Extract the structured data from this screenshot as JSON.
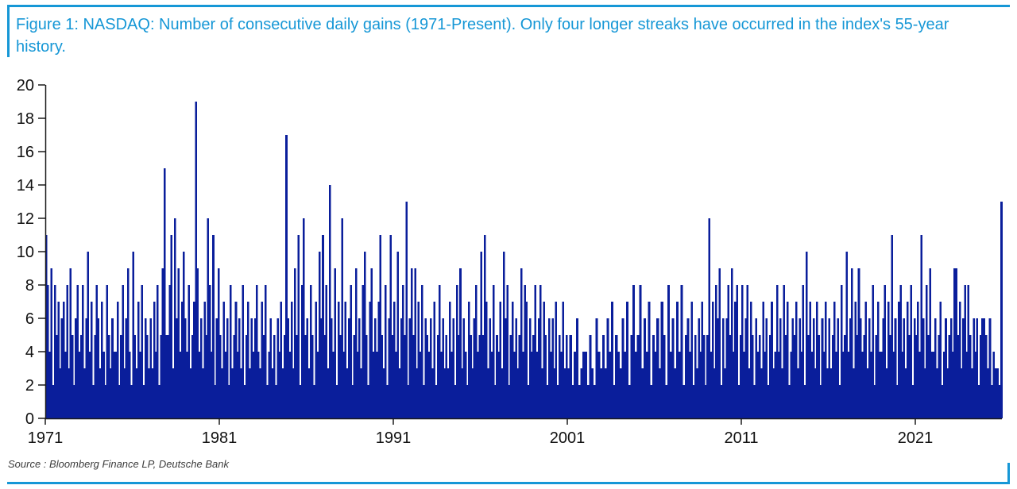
{
  "figure": {
    "title": "Figure 1: NASDAQ: Number of consecutive daily gains (1971-Present). Only four longer streaks have occurred in the index's 55-year history.",
    "source": "Source : Bloomberg Finance LP, Deutsche Bank",
    "accent_color": "#1697d6",
    "bar_color": "#0a1e9b",
    "axis_color": "#1a1a1a"
  },
  "chart_data": {
    "type": "bar",
    "title": "NASDAQ: Number of consecutive daily gains (1971-Present)",
    "xlabel": "",
    "ylabel": "",
    "ylim": [
      0,
      20
    ],
    "ytick_step": 2,
    "xticks": [
      1971,
      1981,
      1991,
      2001,
      2011,
      2021
    ],
    "x_start": 1971,
    "x_end": 2026,
    "grid": false,
    "legend": "none",
    "notable_peaks": [
      {
        "year": 1971.2,
        "value": 11
      },
      {
        "year": 1977.8,
        "value": 15
      },
      {
        "year": 1979.6,
        "value": 19
      },
      {
        "year": 1984.8,
        "value": 17
      },
      {
        "year": 1987.3,
        "value": 14
      },
      {
        "year": 1991.7,
        "value": 13
      },
      {
        "year": 2009.1,
        "value": 12
      },
      {
        "year": 2019.6,
        "value": 11
      },
      {
        "year": 2021.4,
        "value": 11
      },
      {
        "year": 2025.9,
        "value": 13
      }
    ],
    "streaks_by_year": {
      "1971": [
        11,
        8,
        4,
        9,
        2,
        8,
        5,
        7,
        3,
        6
      ],
      "1972": [
        7,
        4,
        8,
        3,
        9,
        5,
        2,
        6,
        8,
        4
      ],
      "1973": [
        5,
        8,
        3,
        6,
        10,
        4,
        7,
        2,
        5,
        8
      ],
      "1974": [
        6,
        3,
        7,
        4,
        2,
        8,
        5,
        3,
        6,
        4
      ],
      "1975": [
        4,
        7,
        2,
        5,
        8,
        3,
        6,
        9,
        4,
        2
      ],
      "1976": [
        10,
        5,
        3,
        7,
        4,
        8,
        2,
        6,
        5,
        3
      ],
      "1977": [
        6,
        3,
        7,
        4,
        8,
        2,
        5,
        9,
        15,
        5
      ],
      "1978": [
        5,
        8,
        11,
        3,
        12,
        6,
        9,
        4,
        7,
        10
      ],
      "1979": [
        6,
        4,
        8,
        3,
        5,
        7,
        19,
        9,
        4,
        6
      ],
      "1980": [
        3,
        7,
        5,
        12,
        8,
        4,
        11,
        2,
        6,
        9
      ],
      "1981": [
        5,
        3,
        7,
        4,
        6,
        2,
        8,
        3,
        5,
        7
      ],
      "1982": [
        4,
        6,
        3,
        8,
        2,
        5,
        7,
        3,
        6,
        4
      ],
      "1983": [
        6,
        8,
        4,
        3,
        7,
        5,
        8,
        2,
        4,
        6
      ],
      "1984": [
        3,
        5,
        2,
        6,
        4,
        7,
        3,
        5,
        17,
        6
      ],
      "1985": [
        4,
        7,
        3,
        9,
        5,
        11,
        2,
        8,
        12,
        5
      ],
      "1986": [
        6,
        3,
        8,
        5,
        2,
        7,
        4,
        10,
        6,
        11
      ],
      "1987": [
        5,
        8,
        3,
        14,
        6,
        4,
        9,
        2,
        7,
        5
      ],
      "1988": [
        12,
        4,
        7,
        3,
        6,
        8,
        2,
        5,
        9,
        4
      ],
      "1989": [
        6,
        3,
        8,
        10,
        5,
        2,
        7,
        9,
        4,
        6
      ],
      "1990": [
        4,
        7,
        11,
        5,
        3,
        8,
        2,
        6,
        11,
        5
      ],
      "1991": [
        7,
        4,
        10,
        3,
        6,
        8,
        5,
        13,
        2,
        6
      ],
      "1992": [
        9,
        5,
        9,
        3,
        7,
        4,
        8,
        2,
        6,
        5
      ],
      "1993": [
        4,
        6,
        3,
        7,
        2,
        5,
        8,
        4,
        6,
        3
      ],
      "1994": [
        5,
        3,
        7,
        4,
        6,
        2,
        8,
        5,
        9,
        3
      ],
      "1995": [
        6,
        4,
        2,
        7,
        5,
        3,
        6,
        8,
        4,
        5
      ],
      "1996": [
        10,
        5,
        11,
        7,
        3,
        6,
        4,
        8,
        2,
        5
      ],
      "1997": [
        4,
        7,
        3,
        10,
        6,
        8,
        2,
        5,
        7,
        4
      ],
      "1998": [
        6,
        3,
        5,
        9,
        4,
        8,
        7,
        2,
        6,
        4
      ],
      "1999": [
        5,
        8,
        4,
        6,
        8,
        3,
        7,
        5,
        2,
        6
      ],
      "2000": [
        4,
        6,
        3,
        7,
        2,
        5,
        4,
        7,
        3,
        5
      ],
      "2001": [
        3,
        5,
        2,
        4,
        6,
        2,
        3,
        4
      ],
      "2002": [
        4,
        2,
        5,
        3,
        2,
        6,
        4,
        3
      ],
      "2003": [
        5,
        3,
        6,
        4,
        7,
        2,
        5,
        4
      ],
      "2004": [
        3,
        6,
        4,
        7,
        2,
        5,
        8,
        4
      ],
      "2005": [
        5,
        8,
        3,
        6,
        4,
        7,
        2,
        5
      ],
      "2006": [
        4,
        6,
        3,
        7,
        5,
        2,
        8,
        4
      ],
      "2007": [
        6,
        3,
        7,
        4,
        8,
        2,
        5,
        6
      ],
      "2008": [
        4,
        7,
        2,
        5,
        3,
        6,
        4,
        7,
        5,
        2
      ],
      "2009": [
        5,
        12,
        4,
        7,
        3,
        8,
        6,
        9,
        2,
        6
      ],
      "2010": [
        3,
        6,
        8,
        5,
        9,
        4,
        7,
        8,
        2,
        5
      ],
      "2011": [
        8,
        4,
        6,
        8,
        3,
        7,
        5,
        2,
        6,
        4
      ],
      "2012": [
        5,
        3,
        7,
        4,
        6,
        2,
        5,
        7,
        3,
        4
      ],
      "2013": [
        8,
        4,
        6,
        3,
        8,
        5,
        7,
        2,
        4,
        6
      ],
      "2014": [
        5,
        7,
        3,
        6,
        4,
        8,
        2,
        10,
        5,
        7
      ],
      "2015": [
        4,
        6,
        3,
        7,
        5,
        2,
        6,
        4,
        7,
        3
      ],
      "2016": [
        6,
        3,
        5,
        7,
        4,
        6,
        2,
        8,
        4,
        5
      ],
      "2017": [
        10,
        4,
        6,
        9,
        3,
        7,
        5,
        9,
        6,
        4
      ],
      "2018": [
        5,
        7,
        3,
        6,
        4,
        8,
        2,
        5,
        7,
        4
      ],
      "2019": [
        4,
        6,
        8,
        3,
        7,
        5,
        11,
        4,
        6,
        2
      ],
      "2020": [
        7,
        8,
        4,
        6,
        3,
        7,
        5,
        8,
        2,
        6
      ],
      "2021": [
        5,
        7,
        4,
        11,
        6,
        3,
        8,
        5,
        9,
        4
      ],
      "2022": [
        4,
        6,
        3,
        5,
        7,
        2,
        4,
        6,
        3,
        5
      ],
      "2023": [
        6,
        4,
        9,
        9,
        5,
        7,
        3,
        6,
        8,
        4
      ],
      "2024": [
        8,
        5,
        3,
        6,
        4,
        6,
        2,
        5,
        6,
        6
      ],
      "2025": [
        5,
        3,
        6,
        2,
        4,
        3,
        3,
        2,
        13
      ]
    }
  }
}
